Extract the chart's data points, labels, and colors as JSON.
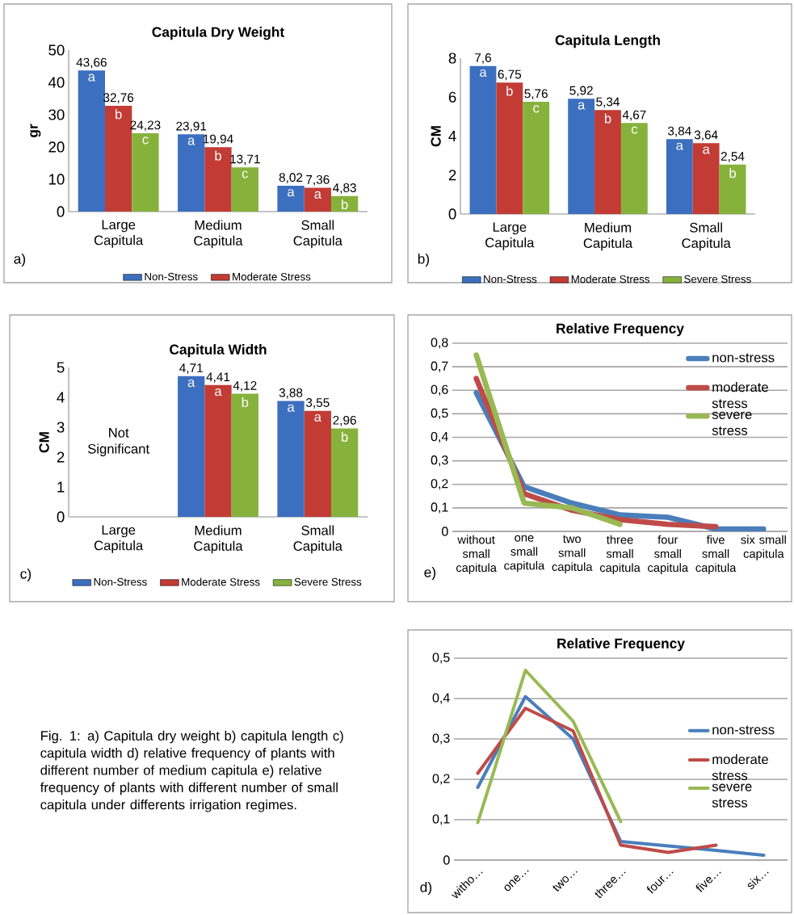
{
  "chart_data": [
    {
      "type": "bar",
      "title": "Capitula Dry Weight",
      "ylabel": "gr",
      "categories": [
        "Large Capitula",
        "Medium Capitula",
        "Small Capitula"
      ],
      "series": [
        {
          "name": "Non-Stress",
          "color": "#3c6fbf",
          "values": [
            43.66,
            23.91,
            8.02
          ],
          "value_labels": [
            "43,66",
            "23,91",
            "8,02"
          ]
        },
        {
          "name": "Moderate Stress",
          "color": "#c23b35",
          "values": [
            32.76,
            19.94,
            7.36
          ],
          "value_labels": [
            "32,76",
            "19,94",
            "7,36"
          ]
        },
        {
          "color": "#86b23c",
          "values": [
            24.23,
            13.71,
            4.83
          ],
          "value_labels": [
            "24,23",
            "13,71",
            "4,83"
          ]
        }
      ],
      "ylim": [
        0,
        50
      ],
      "yticks": [
        0,
        10,
        20,
        30,
        40,
        50
      ],
      "legend": "bottom",
      "annotations": [
        "a)",
        "a",
        "b",
        "c",
        "a",
        "b",
        "c",
        "a",
        "a",
        "b"
      ]
    },
    {
      "type": "bar",
      "title": "Capitula Length",
      "ylabel": "CM",
      "categories": [
        "Large Capitula",
        "Medium Capitula",
        "Small Capitula"
      ],
      "series": [
        {
          "name": "Non-Stress",
          "color": "#3c6fbf",
          "values": [
            7.6,
            5.92,
            3.84
          ],
          "value_labels": [
            "7,6",
            "5,92",
            "3,84"
          ]
        },
        {
          "name": "Moderate Stress",
          "color": "#c23b35",
          "values": [
            6.75,
            5.34,
            3.64
          ],
          "value_labels": [
            "6,75",
            "5,34",
            "3,64"
          ]
        },
        {
          "name": "Severe Stress",
          "color": "#86b23c",
          "values": [
            5.76,
            4.67,
            2.54
          ],
          "value_labels": [
            "5,76",
            "4,67",
            "2,54"
          ]
        }
      ],
      "ylim": [
        0,
        8
      ],
      "yticks": [
        0,
        2,
        4,
        6,
        8
      ],
      "legend": "bottom",
      "annotations": [
        "b)",
        "a",
        "b",
        "c",
        "a",
        "b",
        "c",
        "a",
        "a",
        "b"
      ]
    },
    {
      "type": "bar",
      "title": "Capitula Width",
      "ylabel": "CM",
      "categories": [
        "Large Capitula",
        "Medium Capitula",
        "Small Capitula"
      ],
      "series": [
        {
          "name": "Non-Stress",
          "color": "#3c6fbf",
          "values": [
            0,
            4.71,
            3.88
          ],
          "value_labels": [
            null,
            "4,71",
            "3,88"
          ]
        },
        {
          "name": "Moderate Stress",
          "color": "#c23b35",
          "values": [
            0,
            4.41,
            3.55
          ],
          "value_labels": [
            null,
            "4,41",
            "3,55"
          ]
        },
        {
          "name": "Severe Stress",
          "color": "#86b23c",
          "values": [
            0,
            4.12,
            2.96
          ],
          "value_labels": [
            null,
            "4,12",
            "2,96"
          ]
        }
      ],
      "ylim": [
        0,
        5
      ],
      "yticks": [
        0,
        1,
        2,
        3,
        4,
        5
      ],
      "legend": "bottom",
      "annotations": [
        "c)",
        "Not Significant",
        "a",
        "a",
        "b",
        "a",
        "a",
        "b"
      ]
    },
    {
      "type": "line",
      "title": "Relative Frequency",
      "categories": [
        "without small capitula",
        "one small capitula",
        "two small capitula",
        "three small capitula",
        "four small capitula",
        "five small capitula",
        "six small capitula"
      ],
      "series": [
        {
          "name": "non-stress",
          "color": "#4a7ebb",
          "values": [
            0.59,
            0.19,
            0.12,
            0.07,
            0.06,
            0.01,
            0.01
          ]
        },
        {
          "name": "moderate stress",
          "color": "#be4b48",
          "values": [
            0.65,
            0.16,
            0.09,
            0.05,
            0.03,
            0.02,
            null
          ]
        },
        {
          "name": "severe stress",
          "color": "#98b954",
          "values": [
            0.75,
            0.12,
            0.1,
            0.03,
            null,
            null,
            null
          ]
        }
      ],
      "ylim": [
        0,
        0.8
      ],
      "yticks": [
        0,
        {
          "value": 0.1,
          "label": "0,1"
        },
        {
          "value": 0.2,
          "label": "0,2"
        },
        {
          "value": 0.3,
          "label": "0,3"
        },
        {
          "value": 0.4,
          "label": "0,4"
        },
        {
          "value": 0.5,
          "label": "0,5"
        },
        {
          "value": 0.6,
          "label": "0,6"
        },
        {
          "value": 0.7,
          "label": "0,7"
        },
        {
          "value": 0.8,
          "label": "0,8"
        }
      ],
      "grid": "y",
      "legend": "top right",
      "annotations": [
        "e)"
      ]
    },
    {
      "type": "line",
      "title": "Relative Frequency",
      "categories": [
        "witho…",
        "one…",
        "two…",
        "three…",
        "four…",
        "five…",
        "six…"
      ],
      "series": [
        {
          "name": "non-stress",
          "color": "#4a7ebb",
          "values": [
            0.18,
            0.405,
            0.3,
            0.046,
            0.035,
            0.024,
            0.012
          ]
        },
        {
          "name": "moderate stress",
          "color": "#be4b48",
          "values": [
            0.215,
            0.376,
            0.32,
            0.037,
            0.019,
            0.037,
            null
          ]
        },
        {
          "name": "severe stress",
          "color": "#98b954",
          "values": [
            0.093,
            0.47,
            0.344,
            0.095,
            null,
            null,
            null
          ]
        }
      ],
      "ylim": [
        0,
        0.5
      ],
      "yticks": [
        0,
        {
          "value": 0.1,
          "label": "0,1"
        },
        {
          "value": 0.2,
          "label": "0,2"
        },
        {
          "value": 0.3,
          "label": "0,3"
        },
        {
          "value": 0.4,
          "label": "0,4"
        },
        {
          "value": 0.5,
          "label": "0,5"
        }
      ],
      "grid": "y",
      "legend": "right",
      "annotations": [
        "d)",
        "Fig. 1: a) Capitula dry weight b) capitula length c) capitula width d) relative frequency of plants with different number of medium capitula e) relative frequency of plants with different number of small capitula under differents irrigation regimes."
      ]
    }
  ]
}
